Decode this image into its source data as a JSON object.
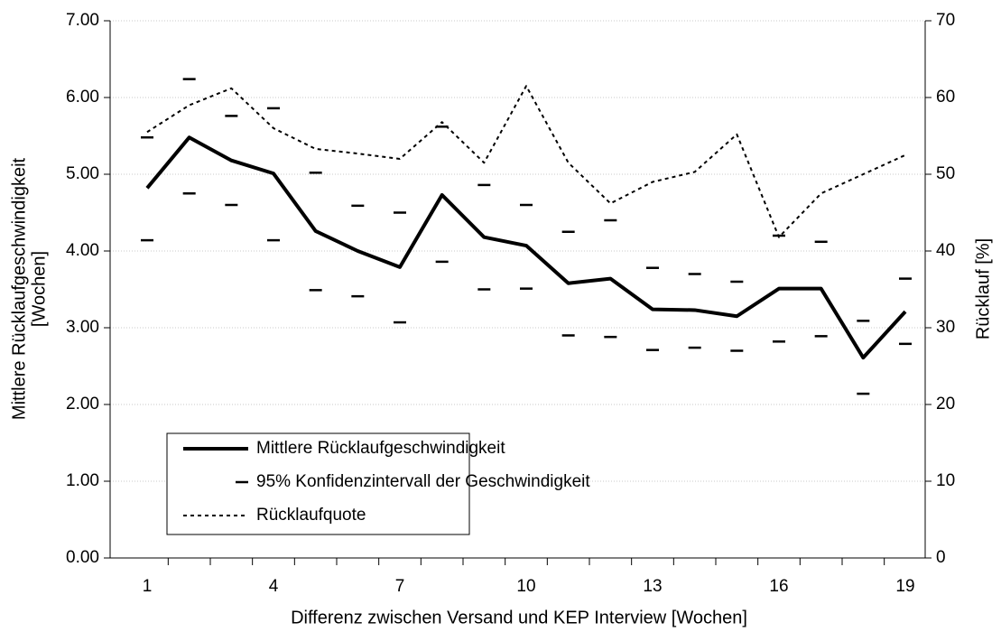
{
  "chart_data": {
    "type": "line",
    "xlabel": "Differenz zwischen Versand und KEP Interview [Wochen]",
    "ylabel": [
      "Mittlere Rücklaufgeschwindigkeit",
      "[Wochen]"
    ],
    "y2label": "Rücklauf [%]",
    "categories": [
      "1",
      null,
      null,
      "4",
      null,
      null,
      "7",
      null,
      null,
      "10",
      null,
      null,
      "13",
      null,
      null,
      "16",
      null,
      null,
      "19"
    ],
    "ylim": [
      0,
      7
    ],
    "yticks": [
      {
        "value": 0,
        "label": "0.00"
      },
      {
        "value": 1,
        "label": "1.00"
      },
      {
        "value": 2,
        "label": "2.00"
      },
      {
        "value": 3,
        "label": "3.00"
      },
      {
        "value": 4,
        "label": "4.00"
      },
      {
        "value": 5,
        "label": "5.00"
      },
      {
        "value": 6,
        "label": "6.00"
      },
      {
        "value": 7,
        "label": "7.00"
      }
    ],
    "y2lim": [
      0,
      70
    ],
    "y2ticks": [
      0,
      10,
      20,
      30,
      40,
      50,
      60,
      70
    ],
    "grid": true,
    "legend": "lower-left",
    "series": [
      {
        "name": "Mittlere Rücklaufgeschwindigkeit",
        "color": "#000000",
        "style": "solid",
        "values": [
          4.82,
          5.48,
          5.18,
          5.01,
          4.26,
          4.0,
          3.79,
          4.73,
          4.18,
          4.07,
          3.58,
          3.64,
          3.24,
          3.23,
          3.15,
          3.51,
          3.51,
          2.61,
          3.21
        ]
      },
      {
        "name": "95% Konfidenzintervall der Geschwindigkeit",
        "color": "#000000",
        "style": "marker",
        "high": [
          5.48,
          6.24,
          5.76,
          5.86,
          5.02,
          4.59,
          4.5,
          5.62,
          4.86,
          4.6,
          4.25,
          4.4,
          3.78,
          3.7,
          3.6,
          4.2,
          4.12,
          3.09,
          3.64
        ],
        "low": [
          4.14,
          4.75,
          4.6,
          4.14,
          3.49,
          3.41,
          3.07,
          3.86,
          3.5,
          3.51,
          2.9,
          2.88,
          2.71,
          2.74,
          2.7,
          2.82,
          2.89,
          2.14,
          2.79
        ]
      },
      {
        "name": "Rücklaufquote",
        "color": "#000000",
        "style": "dashed",
        "axis": "y2",
        "values": [
          55.5,
          59.0,
          61.2,
          56.0,
          53.3,
          52.7,
          52.0,
          56.8,
          51.5,
          61.5,
          51.5,
          46.2,
          49.0,
          50.3,
          55.2,
          41.8,
          47.5,
          50.0,
          52.5
        ]
      }
    ]
  }
}
